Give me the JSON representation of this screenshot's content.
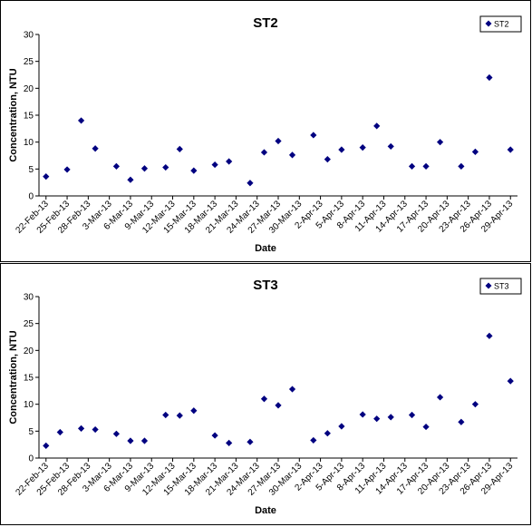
{
  "chart_data": [
    {
      "type": "scatter",
      "title": "ST2",
      "xlabel": "Date",
      "ylabel": "Concentration, NTU",
      "ylim": [
        0,
        30
      ],
      "yticks": [
        "0",
        "5",
        "10",
        "15",
        "20",
        "25",
        "30"
      ],
      "xlim": [
        "2013-02-21",
        "2013-04-30"
      ],
      "xticks": [
        "22-Feb-13",
        "25-Feb-13",
        "28-Feb-13",
        "3-Mar-13",
        "6-Mar-13",
        "9-Mar-13",
        "12-Mar-13",
        "15-Mar-13",
        "18-Mar-13",
        "21-Mar-13",
        "24-Mar-13",
        "27-Mar-13",
        "30-Mar-13",
        "2-Apr-13",
        "5-Apr-13",
        "8-Apr-13",
        "11-Apr-13",
        "14-Apr-13",
        "17-Apr-13",
        "20-Apr-13",
        "23-Apr-13",
        "26-Apr-13",
        "29-Apr-13"
      ],
      "grid": false,
      "legend_position": "top-right",
      "marker_color": "#000080",
      "series": [
        {
          "name": "ST2",
          "points": [
            {
              "x": "2013-02-22",
              "y": 3.6
            },
            {
              "x": "2013-02-25",
              "y": 4.9
            },
            {
              "x": "2013-02-27",
              "y": 14.0
            },
            {
              "x": "2013-03-01",
              "y": 8.8
            },
            {
              "x": "2013-03-04",
              "y": 5.5
            },
            {
              "x": "2013-03-06",
              "y": 3.0
            },
            {
              "x": "2013-03-08",
              "y": 5.1
            },
            {
              "x": "2013-03-11",
              "y": 5.3
            },
            {
              "x": "2013-03-13",
              "y": 8.7
            },
            {
              "x": "2013-03-15",
              "y": 4.7
            },
            {
              "x": "2013-03-18",
              "y": 5.8
            },
            {
              "x": "2013-03-20",
              "y": 6.4
            },
            {
              "x": "2013-03-23",
              "y": 2.4
            },
            {
              "x": "2013-03-25",
              "y": 8.1
            },
            {
              "x": "2013-03-27",
              "y": 10.2
            },
            {
              "x": "2013-03-29",
              "y": 7.6
            },
            {
              "x": "2013-04-01",
              "y": 11.3
            },
            {
              "x": "2013-04-03",
              "y": 6.8
            },
            {
              "x": "2013-04-05",
              "y": 8.6
            },
            {
              "x": "2013-04-08",
              "y": 9.0
            },
            {
              "x": "2013-04-10",
              "y": 13.0
            },
            {
              "x": "2013-04-12",
              "y": 9.2
            },
            {
              "x": "2013-04-15",
              "y": 5.5
            },
            {
              "x": "2013-04-17",
              "y": 5.5
            },
            {
              "x": "2013-04-19",
              "y": 10.0
            },
            {
              "x": "2013-04-22",
              "y": 5.5
            },
            {
              "x": "2013-04-24",
              "y": 8.2
            },
            {
              "x": "2013-04-26",
              "y": 22.0
            },
            {
              "x": "2013-04-29",
              "y": 8.6
            }
          ]
        }
      ]
    },
    {
      "type": "scatter",
      "title": "ST3",
      "xlabel": "Date",
      "ylabel": "Concentration, NTU",
      "ylim": [
        0,
        30
      ],
      "yticks": [
        "0",
        "5",
        "10",
        "15",
        "20",
        "25",
        "30"
      ],
      "xlim": [
        "2013-02-21",
        "2013-04-30"
      ],
      "xticks": [
        "22-Feb-13",
        "25-Feb-13",
        "28-Feb-13",
        "3-Mar-13",
        "6-Mar-13",
        "9-Mar-13",
        "12-Mar-13",
        "15-Mar-13",
        "18-Mar-13",
        "21-Mar-13",
        "24-Mar-13",
        "27-Mar-13",
        "30-Mar-13",
        "2-Apr-13",
        "5-Apr-13",
        "8-Apr-13",
        "11-Apr-13",
        "14-Apr-13",
        "17-Apr-13",
        "20-Apr-13",
        "23-Apr-13",
        "26-Apr-13",
        "29-Apr-13"
      ],
      "grid": false,
      "legend_position": "top-right",
      "marker_color": "#000080",
      "series": [
        {
          "name": "ST3",
          "points": [
            {
              "x": "2013-02-22",
              "y": 2.3
            },
            {
              "x": "2013-02-24",
              "y": 4.8
            },
            {
              "x": "2013-02-27",
              "y": 5.5
            },
            {
              "x": "2013-03-01",
              "y": 5.3
            },
            {
              "x": "2013-03-04",
              "y": 4.5
            },
            {
              "x": "2013-03-06",
              "y": 3.2
            },
            {
              "x": "2013-03-08",
              "y": 3.2
            },
            {
              "x": "2013-03-11",
              "y": 8.0
            },
            {
              "x": "2013-03-13",
              "y": 7.9
            },
            {
              "x": "2013-03-15",
              "y": 8.8
            },
            {
              "x": "2013-03-18",
              "y": 4.2
            },
            {
              "x": "2013-03-20",
              "y": 2.8
            },
            {
              "x": "2013-03-23",
              "y": 3.0
            },
            {
              "x": "2013-03-25",
              "y": 11.0
            },
            {
              "x": "2013-03-27",
              "y": 9.8
            },
            {
              "x": "2013-03-29",
              "y": 12.8
            },
            {
              "x": "2013-04-01",
              "y": 3.3
            },
            {
              "x": "2013-04-03",
              "y": 4.6
            },
            {
              "x": "2013-04-05",
              "y": 5.9
            },
            {
              "x": "2013-04-08",
              "y": 8.1
            },
            {
              "x": "2013-04-10",
              "y": 7.3
            },
            {
              "x": "2013-04-12",
              "y": 7.6
            },
            {
              "x": "2013-04-15",
              "y": 8.0
            },
            {
              "x": "2013-04-17",
              "y": 5.8
            },
            {
              "x": "2013-04-19",
              "y": 11.3
            },
            {
              "x": "2013-04-22",
              "y": 6.7
            },
            {
              "x": "2013-04-24",
              "y": 10.0
            },
            {
              "x": "2013-04-26",
              "y": 22.7
            },
            {
              "x": "2013-04-29",
              "y": 14.3
            }
          ]
        }
      ]
    }
  ]
}
